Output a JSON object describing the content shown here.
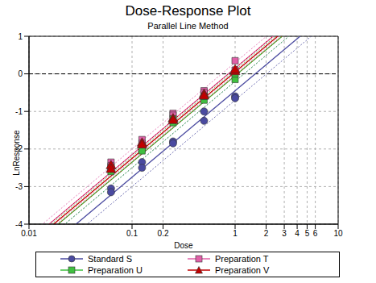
{
  "chart_data": {
    "type": "scatter",
    "title": "Dose-Response Plot",
    "subtitle": "Parallel Line Method",
    "x_label": "Dose",
    "y_label": "LnResponse",
    "log": "x",
    "xlim": [
      0.01,
      10
    ],
    "ylim": [
      -4,
      1
    ],
    "xticks": [
      0.01,
      0.1,
      0.2,
      1,
      2,
      3,
      4,
      5,
      6,
      10
    ],
    "yticks": [
      -4,
      -3,
      -2,
      -1,
      0,
      1
    ],
    "grid": true,
    "legend": "bottom",
    "reference_y": 0,
    "series": [
      {
        "name": "Standard S",
        "color": "#4a4aa0",
        "marker": "circle",
        "x": [
          0.0625,
          0.0625,
          0.125,
          0.125,
          0.25,
          0.25,
          0.5,
          0.5,
          1,
          1
        ],
        "values": [
          -3.05,
          -3.15,
          -2.35,
          -2.5,
          -1.8,
          -1.85,
          -1.0,
          -1.25,
          -0.6,
          -0.65
        ],
        "fit": {
          "x": [
            0.01,
            10
          ],
          "values": [
            -5.05,
            1.85
          ],
          "lower": [
            -5.3,
            1.6
          ],
          "upper": [
            -4.8,
            2.1
          ]
        }
      },
      {
        "name": "Preparation T",
        "color": "#e060a8",
        "marker": "square",
        "x": [
          0.0625,
          0.0625,
          0.125,
          0.125,
          0.25,
          0.25,
          0.5,
          0.5,
          1,
          1
        ],
        "values": [
          -2.35,
          -2.45,
          -1.75,
          -1.85,
          -1.05,
          -1.1,
          -0.45,
          -0.5,
          0.1,
          0.35
        ],
        "fit": {
          "x": [
            0.01,
            10
          ],
          "values": [
            -4.45,
            2.45
          ],
          "lower": [
            -4.6,
            2.3
          ],
          "upper": [
            -4.3,
            2.6
          ]
        }
      },
      {
        "name": "Preparation U",
        "color": "#40c040",
        "marker": "square",
        "x": [
          0.0625,
          0.0625,
          0.125,
          0.125,
          0.25,
          0.25,
          0.5,
          0.5,
          1,
          1
        ],
        "values": [
          -2.6,
          -2.5,
          -2.0,
          -2.05,
          -1.3,
          -1.2,
          -0.7,
          -0.6,
          -0.15,
          0.0
        ],
        "fit": {
          "x": [
            0.01,
            10
          ],
          "values": [
            -4.65,
            2.25
          ],
          "lower": [
            -4.8,
            2.1
          ],
          "upper": [
            -4.5,
            2.4
          ]
        }
      },
      {
        "name": "Preparation V",
        "color": "#c00000",
        "marker": "triangle",
        "x": [
          0.0625,
          0.0625,
          0.125,
          0.125,
          0.25,
          0.25,
          0.5,
          0.5,
          1,
          1
        ],
        "values": [
          -2.45,
          -2.55,
          -1.85,
          -1.9,
          -1.2,
          -1.25,
          -0.55,
          -0.6,
          0.05,
          0.1
        ],
        "fit": {
          "x": [
            0.01,
            10
          ],
          "values": [
            -4.55,
            2.35
          ],
          "lower": [
            -4.65,
            2.25
          ],
          "upper": [
            -4.45,
            2.45
          ]
        }
      }
    ]
  }
}
